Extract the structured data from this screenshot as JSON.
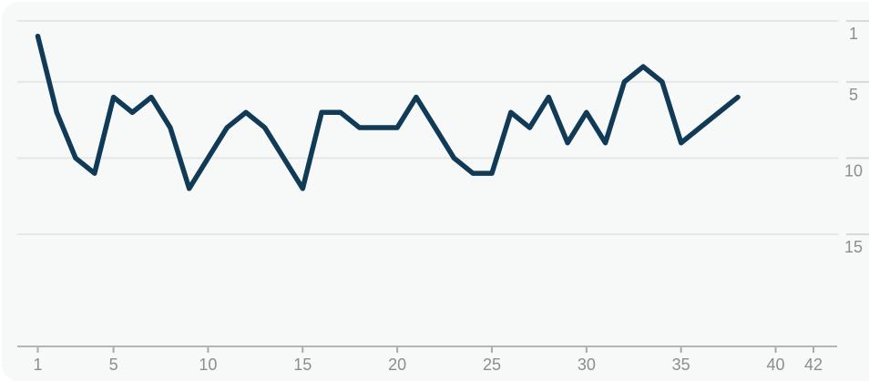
{
  "chart_data": {
    "type": "line",
    "series_name": "chart-position-by-week",
    "x": [
      1,
      2,
      3,
      4,
      5,
      6,
      7,
      8,
      9,
      10,
      11,
      12,
      13,
      14,
      15,
      16,
      17,
      18,
      19,
      20,
      21,
      22,
      23,
      24,
      25,
      26,
      27,
      28,
      29,
      30,
      31,
      32,
      33,
      34,
      35,
      36,
      37,
      38
    ],
    "values": [
      2,
      7,
      10,
      11,
      6,
      7,
      6,
      8,
      12,
      10,
      8,
      7,
      8,
      10,
      12,
      7,
      7,
      8,
      8,
      8,
      6,
      8,
      10,
      11,
      11,
      7,
      8,
      6,
      9,
      7,
      9,
      5,
      4,
      5,
      9,
      8,
      7,
      6
    ],
    "x_ticks": [
      "1",
      "5",
      "10",
      "15",
      "20",
      "25",
      "30",
      "35",
      "40",
      "42"
    ],
    "x_tick_values": [
      1,
      5,
      10,
      15,
      20,
      25,
      30,
      35,
      40,
      42
    ],
    "y_ticks": [
      "1",
      "5",
      "10",
      "15"
    ],
    "y_tick_values": [
      1,
      5,
      10,
      15
    ],
    "x_range": [
      1,
      42
    ],
    "y_axis": {
      "inverted": true,
      "labels_side": "right"
    },
    "grid": "horizontal-only",
    "legend": "none",
    "title": ""
  },
  "colors": {
    "line": "#113a57",
    "card_background": "#f7f9f9",
    "page_background": "#ffffff",
    "gridline": "#e5e7e7",
    "right_tick_dash": "#d8dada",
    "axis_line": "#b3b5b5",
    "axis_tick": "#a9abab",
    "tick_label": "#8b8d8e"
  }
}
